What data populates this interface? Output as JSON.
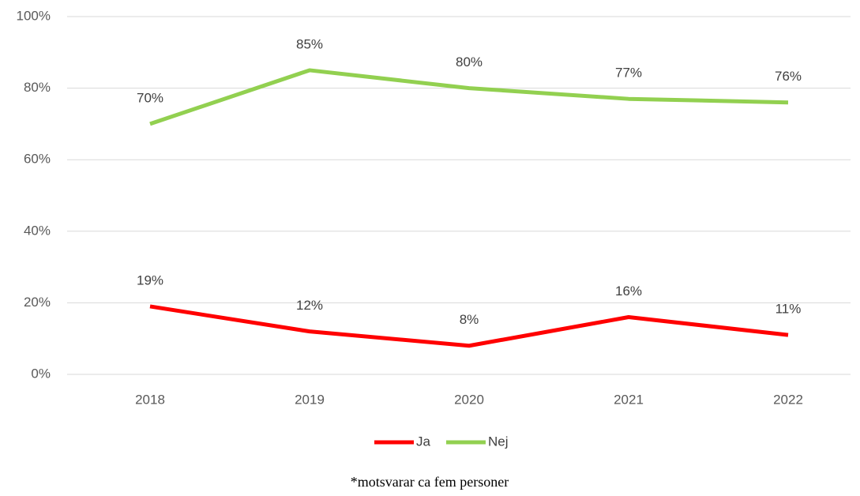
{
  "chart_data": {
    "type": "line",
    "categories": [
      "2018",
      "2019",
      "2020",
      "2021",
      "2022"
    ],
    "series": [
      {
        "name": "Ja",
        "color": "#ff0000",
        "values": [
          19,
          12,
          8,
          16,
          11
        ],
        "value_labels": [
          "19%",
          "12%",
          "8%",
          "16%",
          "11%"
        ]
      },
      {
        "name": "Nej",
        "color": "#92d050",
        "values": [
          70,
          85,
          80,
          77,
          76
        ],
        "value_labels": [
          "70%",
          "85%",
          "80%",
          "77%",
          "76%"
        ]
      }
    ],
    "ylim": [
      0,
      100
    ],
    "yticks": [
      {
        "value": 0,
        "label": "0%"
      },
      {
        "value": 20,
        "label": "20%"
      },
      {
        "value": 40,
        "label": "40%"
      },
      {
        "value": 60,
        "label": "60%"
      },
      {
        "value": 80,
        "label": "80%"
      },
      {
        "value": 100,
        "label": "100%"
      }
    ],
    "grid": true,
    "legend": "bottom",
    "footnote": "*motsvarar ca fem personer"
  }
}
